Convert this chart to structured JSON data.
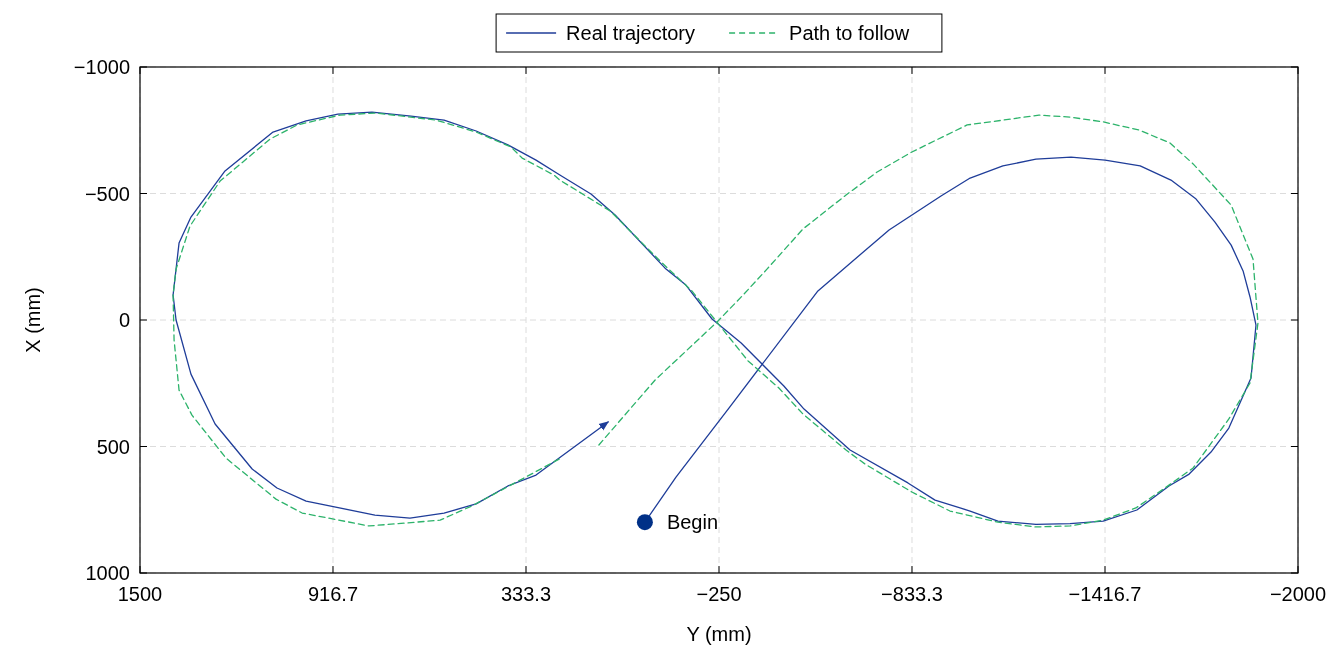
{
  "chart_data": {
    "type": "line",
    "xlabel": "Y (mm)",
    "ylabel": "X (mm)",
    "xlim": [
      1500,
      -2000
    ],
    "ylim": [
      1000,
      -1000
    ],
    "xticks": [
      1500,
      916.7,
      333.3,
      {
        "value": -250,
        "label": "−250"
      },
      {
        "value": -833.3,
        "label": "−833.3"
      },
      {
        "value": -1416.7,
        "label": "−1416.7"
      },
      {
        "value": -2000,
        "label": "−2000"
      }
    ],
    "yticks": [
      {
        "value": -1000,
        "label": "−1000"
      },
      {
        "value": -500,
        "label": "−500"
      },
      0,
      500,
      1000
    ],
    "grid": true,
    "legend": "top",
    "marker": "none",
    "annotations": [
      {
        "text": "Begin",
        "x": -26,
        "y": 799
      }
    ],
    "series": [
      {
        "name": "Real trajectory",
        "color": "#1f3d99",
        "line_style": "solid",
        "x": [
          -26,
          -120,
          -280,
          -549,
          -764,
          -921,
          -1009,
          -1108,
          -1208,
          -1314,
          -1417,
          -1523,
          -1616,
          -1692,
          -1749,
          -1798,
          -1834,
          -1855,
          -1873,
          -1858,
          -1791,
          -1737,
          -1671,
          -1610,
          -1513,
          -1411,
          -1311,
          -1208,
          -1093,
          -1009,
          -903,
          -821,
          -646,
          -507,
          -446,
          -317,
          -229,
          -150,
          -87,
          64,
          137,
          231,
          303,
          388,
          484,
          581,
          681,
          799,
          902,
          998,
          1098,
          1243,
          1346,
          1382,
          1400,
          1391,
          1346,
          1273,
          1161,
          1086,
          998,
          790,
          684,
          581,
          484,
          388,
          303,
          85
        ],
        "values": [
          799,
          621,
          348,
          -115,
          -356,
          -490,
          -561,
          -609,
          -636,
          -644,
          -632,
          -609,
          -553,
          -478,
          -387,
          -296,
          -194,
          -91,
          20,
          229,
          427,
          522,
          609,
          656,
          751,
          795,
          805,
          808,
          795,
          755,
          712,
          644,
          514,
          352,
          261,
          91,
          -4,
          -138,
          -205,
          -415,
          -498,
          -573,
          -632,
          -692,
          -747,
          -790,
          -806,
          -822,
          -814,
          -787,
          -743,
          -589,
          -407,
          -304,
          -99,
          0,
          214,
          411,
          589,
          664,
          716,
          771,
          783,
          763,
          727,
          656,
          613,
          403
        ]
      },
      {
        "name": "Path to follow",
        "color": "#2db36b",
        "line_style": "dashed",
        "x": [
          113,
          -57,
          -244,
          -323,
          -395,
          -504,
          -634,
          -728,
          -833,
          -1000,
          -1108,
          -1217,
          -1311,
          -1411,
          -1519,
          -1613,
          -1683,
          -1798,
          -1864,
          -1879,
          -1855,
          -1791,
          -1683,
          -1598,
          -1510,
          -1411,
          -1311,
          -1208,
          -1093,
          -948,
          -833,
          -691,
          -634,
          -504,
          -431,
          -338,
          -168,
          -72,
          79,
          231,
          249,
          345,
          379,
          484,
          605,
          787,
          895,
          1025,
          1107,
          1258,
          1349,
          1391,
          1400,
          1397,
          1382,
          1343,
          1240,
          1089,
          1010,
          808,
          702,
          593,
          497,
          367,
          228
        ],
        "values": [
          494,
          237,
          8,
          -99,
          -201,
          -360,
          -494,
          -585,
          -664,
          -771,
          -790,
          -810,
          -802,
          -783,
          -751,
          -700,
          -617,
          -454,
          -241,
          12,
          249,
          391,
          585,
          664,
          743,
          791,
          814,
          818,
          799,
          755,
          680,
          569,
          514,
          372,
          269,
          162,
          -115,
          -233,
          -431,
          -553,
          -573,
          -640,
          -684,
          -743,
          -790,
          -818,
          -810,
          -771,
          -715,
          -549,
          -371,
          -201,
          -99,
          79,
          277,
          376,
          546,
          708,
          763,
          814,
          803,
          791,
          735,
          644,
          546
        ]
      },
      {
        "type": "scatter",
        "color": "#003087",
        "marker": "circle",
        "x": [
          -26
        ],
        "values": [
          799
        ]
      }
    ]
  }
}
